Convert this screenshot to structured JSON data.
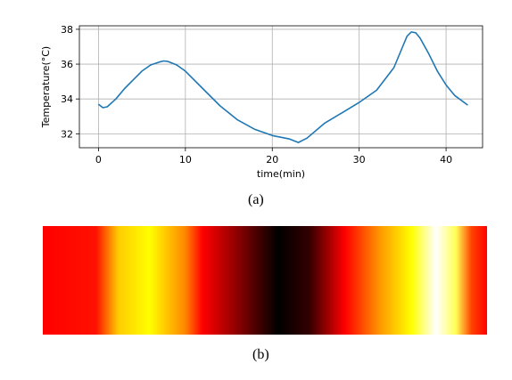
{
  "chart_data": [
    {
      "type": "line",
      "xlabel": "time(min)",
      "ylabel": "Temperature(°C)",
      "xlim": [
        -2.2,
        44.2
      ],
      "ylim": [
        31.2,
        38.2
      ],
      "xticks": [
        0,
        10,
        20,
        30,
        40
      ],
      "yticks": [
        32,
        34,
        36,
        38
      ],
      "grid": true,
      "line_color": "#1f77b4",
      "series": [
        {
          "x": [
            0,
            0.5,
            1,
            2,
            3,
            4,
            5,
            6,
            7,
            7.5,
            8,
            9,
            10,
            12,
            14,
            16,
            18,
            20,
            22,
            23,
            24,
            26,
            28,
            30,
            32,
            34,
            35,
            35.5,
            36,
            36.5,
            37,
            38,
            39,
            40,
            41,
            42.5
          ],
          "y": [
            33.7,
            33.5,
            33.55,
            34.0,
            34.6,
            35.1,
            35.6,
            35.95,
            36.12,
            36.18,
            36.15,
            35.95,
            35.6,
            34.6,
            33.6,
            32.8,
            32.25,
            31.9,
            31.7,
            31.5,
            31.75,
            32.6,
            33.2,
            33.8,
            34.5,
            35.8,
            37.0,
            37.6,
            37.85,
            37.8,
            37.5,
            36.6,
            35.6,
            34.8,
            34.2,
            33.65
          ]
        }
      ]
    },
    {
      "type": "heatmap",
      "colormap": "hot",
      "colorstops": [
        {
          "pos": 0.0,
          "color": "#ff0000"
        },
        {
          "pos": 0.12,
          "color": "#ff1100"
        },
        {
          "pos": 0.17,
          "color": "#ffcc00"
        },
        {
          "pos": 0.24,
          "color": "#ffff00"
        },
        {
          "pos": 0.32,
          "color": "#ff8800"
        },
        {
          "pos": 0.36,
          "color": "#ff0000"
        },
        {
          "pos": 0.44,
          "color": "#880000"
        },
        {
          "pos": 0.53,
          "color": "#000000"
        },
        {
          "pos": 0.6,
          "color": "#330000"
        },
        {
          "pos": 0.68,
          "color": "#ff0000"
        },
        {
          "pos": 0.76,
          "color": "#ff9900"
        },
        {
          "pos": 0.83,
          "color": "#ffff00"
        },
        {
          "pos": 0.885,
          "color": "#ffffff"
        },
        {
          "pos": 0.93,
          "color": "#ffff55"
        },
        {
          "pos": 0.965,
          "color": "#ff4400"
        },
        {
          "pos": 1.0,
          "color": "#ff0000"
        }
      ]
    }
  ],
  "captions": {
    "a": "(a)",
    "b": "(b)"
  }
}
